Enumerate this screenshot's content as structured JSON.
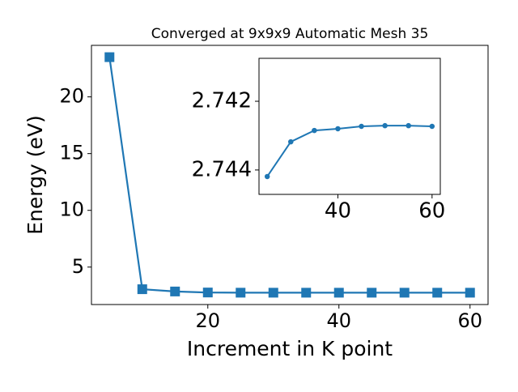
{
  "chart_data": [
    {
      "type": "line",
      "title": "Converged at 9x9x9 Automatic Mesh 35",
      "xlabel": "Increment in K point",
      "ylabel": "Energy (eV)",
      "x": [
        5,
        10,
        15,
        20,
        25,
        30,
        35,
        40,
        45,
        50,
        55,
        60
      ],
      "series": [
        {
          "color": "#1f77b4",
          "marker": "square",
          "values": [
            23.5,
            3.05,
            2.85,
            2.76,
            2.7442,
            2.7432,
            2.7429,
            2.7428,
            2.7427,
            2.7427,
            2.7427,
            2.7427
          ]
        }
      ],
      "xlim": [
        2.25,
        62.75
      ],
      "ylim": [
        1.7,
        24.54
      ],
      "xticks": [
        20,
        40,
        60
      ],
      "yticks": [
        5,
        10,
        15,
        20
      ]
    },
    {
      "type": "line",
      "x": [
        25,
        30,
        35,
        40,
        45,
        50,
        55,
        60
      ],
      "series": [
        {
          "color": "#1f77b4",
          "marker": "circle",
          "values": [
            2.74419,
            2.74318,
            2.74285,
            2.7428,
            2.74273,
            2.74271,
            2.74271,
            2.74273
          ]
        }
      ],
      "xlim": [
        23.25,
        61.75
      ],
      "ylim": [
        2.74471,
        2.74075
      ],
      "xticks": [
        40,
        60
      ],
      "yticks": [
        2.742,
        2.744
      ]
    }
  ]
}
